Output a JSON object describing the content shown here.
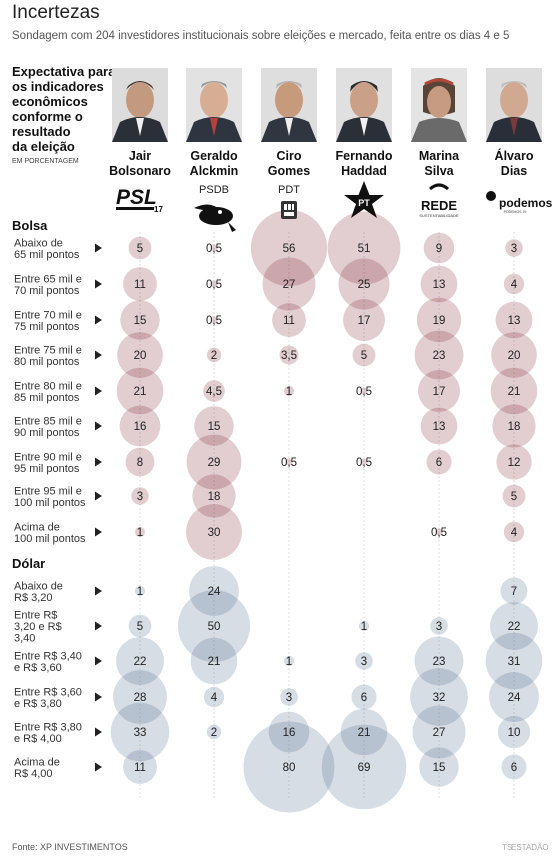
{
  "title": "Incertezas",
  "subtitle": "Sondagem com 204 investidores institucionais sobre eleições e mercado, feita entre os dias 4 e 5",
  "expectation_title": [
    "Expectativa para",
    "os indicadores",
    "econômicos",
    "conforme o",
    "resultado",
    "da eleição"
  ],
  "unit": "EM PORCENTAGEM",
  "source": "Fonte: XP INVESTIMENTOS",
  "credit": "ESTADÃO",
  "colors": {
    "bolsa": "#7a1f2e",
    "dolar": "#4a6587",
    "arrow": "#222222",
    "gridline": "#dddddd"
  },
  "candidates": [
    {
      "name": [
        "Jair",
        "Bolsonaro"
      ],
      "party": "PSL",
      "party_mark": "17",
      "photo_icon": "bolsonaro-portrait-icon",
      "logo_icon": "psl-logo-icon"
    },
    {
      "name": [
        "Geraldo",
        "Alckmin"
      ],
      "party": "PSDB",
      "photo_icon": "alckmin-portrait-icon",
      "logo_icon": "psdb-toucan-icon"
    },
    {
      "name": [
        "Ciro",
        "Gomes"
      ],
      "party": "PDT",
      "photo_icon": "ciro-portrait-icon",
      "logo_icon": "pdt-logo-icon"
    },
    {
      "name": [
        "Fernando",
        "Haddad"
      ],
      "party": "PT",
      "photo_icon": "haddad-portrait-icon",
      "logo_icon": "pt-star-icon"
    },
    {
      "name": [
        "Marina",
        "Silva"
      ],
      "party": "REDE",
      "party_mark": "SUSTENTABILIDADE",
      "photo_icon": "marina-portrait-icon",
      "logo_icon": "rede-logo-icon"
    },
    {
      "name": [
        "Álvaro",
        "Dias"
      ],
      "party": "podemos",
      "party_mark": "PODEMOS 19",
      "photo_icon": "alvaro-portrait-icon",
      "logo_icon": "podemos-logo-icon"
    }
  ],
  "chart_data": {
    "type": "bubble",
    "series": [
      "Jair Bolsonaro",
      "Geraldo Alckmin",
      "Ciro Gomes",
      "Fernando Haddad",
      "Marina Silva",
      "Álvaro Dias"
    ],
    "sections": [
      {
        "name": "Bolsa",
        "rows": [
          {
            "label": [
              "Abaixo de",
              "65 mil pontos"
            ],
            "values": [
              "5",
              "0,5",
              "56",
              "51",
              "9",
              "3"
            ]
          },
          {
            "label": [
              "Entre 65 mil e",
              "70 mil pontos"
            ],
            "values": [
              "11",
              "0,5",
              "27",
              "25",
              "13",
              "4"
            ]
          },
          {
            "label": [
              "Entre 70 mil e",
              "75 mil pontos"
            ],
            "values": [
              "15",
              "0,5",
              "11",
              "17",
              "19",
              "13"
            ]
          },
          {
            "label": [
              "Entre 75 mil e",
              "80 mil pontos"
            ],
            "values": [
              "20",
              "2",
              "3,5",
              "5",
              "23",
              "20"
            ]
          },
          {
            "label": [
              "Entre 80 mil e",
              "85 mil pontos"
            ],
            "values": [
              "21",
              "4,5",
              "1",
              "0,5",
              "17",
              "21"
            ]
          },
          {
            "label": [
              "Entre 85 mil e",
              "90 mil pontos"
            ],
            "values": [
              "16",
              "15",
              "",
              "",
              "13",
              "18"
            ]
          },
          {
            "label": [
              "Entre 90 mil e",
              "95 mil pontos"
            ],
            "values": [
              "8",
              "29",
              "0,5",
              "0,5",
              "6",
              "12"
            ]
          },
          {
            "label": [
              "Entre 95 mil e",
              "100 mil pontos"
            ],
            "values": [
              "3",
              "18",
              "",
              "",
              "",
              "5"
            ]
          },
          {
            "label": [
              "Acima de",
              "100 mil pontos"
            ],
            "values": [
              "1",
              "30",
              "",
              "",
              "0,5",
              "4"
            ]
          }
        ]
      },
      {
        "name": "Dólar",
        "rows": [
          {
            "label": [
              "Abaixo de",
              "R$ 3,20"
            ],
            "values": [
              "1",
              "24",
              "",
              "",
              "",
              "7"
            ]
          },
          {
            "label": [
              "Entre R$",
              "3,20 e R$",
              "3,40"
            ],
            "values": [
              "5",
              "50",
              "",
              "1",
              "3",
              "22"
            ]
          },
          {
            "label": [
              "Entre R$ 3,40",
              "e R$ 3,60"
            ],
            "values": [
              "22",
              "21",
              "1",
              "3",
              "23",
              "31"
            ]
          },
          {
            "label": [
              "Entre R$ 3,60",
              "e R$ 3,80"
            ],
            "values": [
              "28",
              "4",
              "3",
              "6",
              "32",
              "24"
            ]
          },
          {
            "label": [
              "Entre R$ 3,80",
              "e R$ 4,00"
            ],
            "values": [
              "33",
              "2",
              "16",
              "21",
              "27",
              "10"
            ]
          },
          {
            "label": [
              "Acima de",
              "R$ 4,00"
            ],
            "values": [
              "11",
              "",
              "80",
              "69",
              "15",
              "6"
            ]
          }
        ]
      }
    ]
  }
}
